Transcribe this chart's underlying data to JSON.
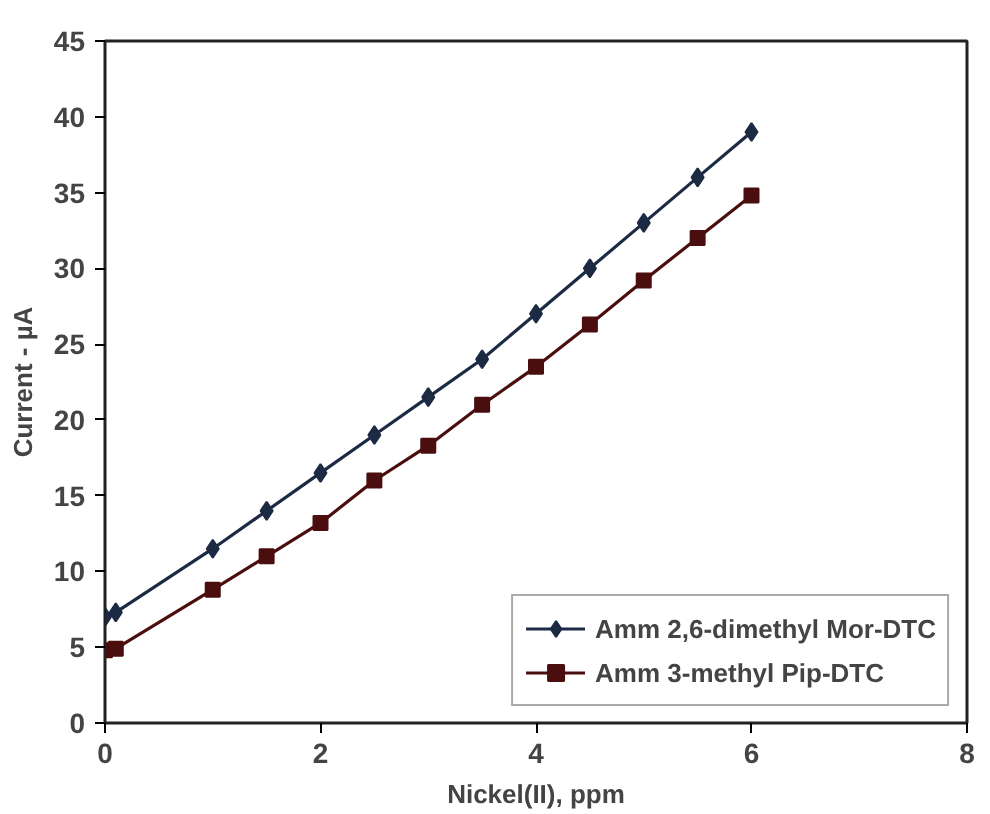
{
  "chart_data": {
    "type": "line",
    "xlabel": "Nickel(II), ppm",
    "ylabel": "Current - µA",
    "xlim": [
      0,
      8
    ],
    "ylim": [
      0,
      45
    ],
    "xticks": [
      0,
      2,
      4,
      6,
      8
    ],
    "yticks": [
      0,
      5,
      10,
      15,
      20,
      25,
      30,
      35,
      40,
      45
    ],
    "grid": false,
    "legend": "bottom right",
    "line_style": "solid",
    "series": [
      {
        "name": "Amm 2,6-dimethyl Mor-DTC",
        "color": "#1c2a44",
        "marker": "diamond",
        "x": [
          0,
          0.1,
          1,
          1.5,
          2,
          2.5,
          3,
          3.5,
          4,
          4.5,
          5,
          5.5,
          6
        ],
        "values": [
          7,
          7.3,
          11.5,
          14,
          16.5,
          19,
          21.5,
          24,
          27,
          30,
          33,
          36,
          39
        ]
      },
      {
        "name": "Amm 3-methyl Pip-DTC",
        "color": "#4a0e0e",
        "marker": "square",
        "x": [
          0,
          0.1,
          1,
          1.5,
          2,
          2.5,
          3,
          3.5,
          4,
          4.5,
          5,
          5.5,
          6
        ],
        "values": [
          4.8,
          4.9,
          8.8,
          11,
          13.2,
          16,
          18.3,
          21,
          23.5,
          26.3,
          29.2,
          32,
          34.8
        ]
      }
    ]
  }
}
